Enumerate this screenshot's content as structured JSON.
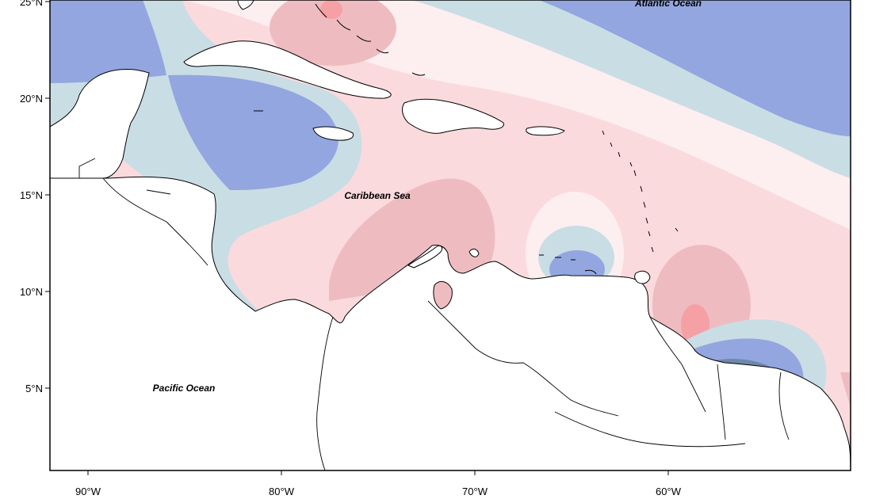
{
  "map": {
    "region": "Caribbean",
    "labels": {
      "atlantic": "Atlantic Ocean",
      "caribbean": "Caribbean Sea",
      "pacific": "Pacific Ocean"
    },
    "lat_ticks": [
      "25°N",
      "20°N",
      "15°N",
      "10°N",
      "5°N"
    ],
    "lon_ticks": [
      "90°W",
      "80°W",
      "70°W",
      "60°W"
    ],
    "lat_range": [
      1,
      26
    ],
    "lon_range": [
      -92,
      -51
    ],
    "colors": {
      "strong_positive": "#f5a0a5",
      "positive": "#eebcc0",
      "weak_positive": "#fbdadd",
      "near_zero": "#fdeef0",
      "weak_negative": "#c9dde4",
      "negative": "#93a6e0",
      "strong_negative": "#6f87aa",
      "land": "#ffffff",
      "coastline": "#000000"
    }
  }
}
